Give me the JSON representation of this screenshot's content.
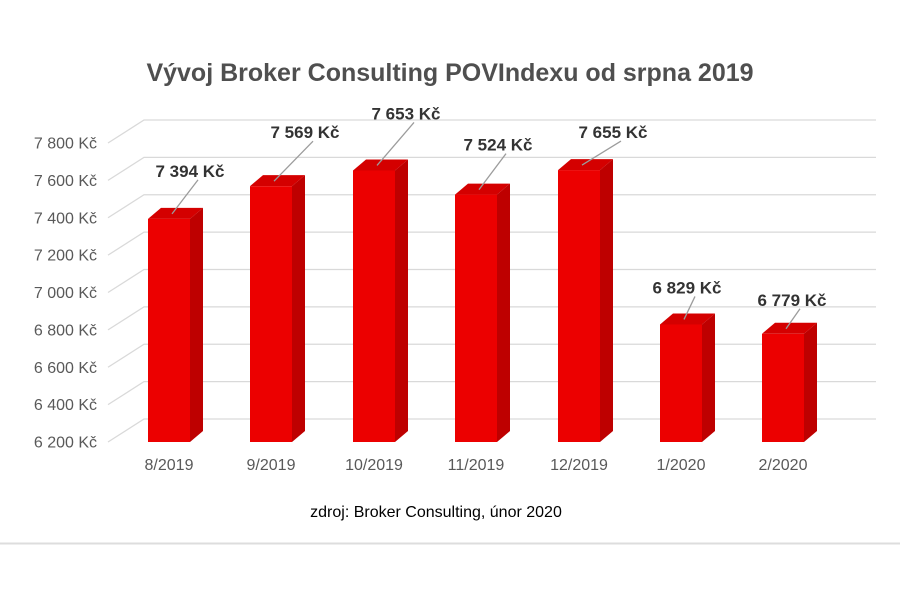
{
  "page": {
    "source_note": "zdroj: Broker Consulting, únor 2020"
  },
  "chart_data": {
    "type": "bar",
    "style": "3d-column",
    "title": "Vývoj Broker Consulting POVIndexu od srpna 2019",
    "categories": [
      "8/2019",
      "9/2019",
      "10/2019",
      "11/2019",
      "12/2019",
      "1/2020",
      "2/2020"
    ],
    "series": [
      {
        "name": "POVIndex",
        "values": [
          7394,
          7569,
          7653,
          7524,
          7655,
          6829,
          6779
        ],
        "data_labels": [
          "7 394 Kč",
          "7 569 Kč",
          "7 653 Kč",
          "7 524 Kč",
          "7 655 Kč",
          "6 829 Kč",
          "6 779 Kč"
        ]
      }
    ],
    "unit": "Kč",
    "ylim": [
      6200,
      7800
    ],
    "y_ticks": [
      {
        "value": 7800,
        "label": "7 800 Kč"
      },
      {
        "value": 7600,
        "label": "7 600 Kč"
      },
      {
        "value": 7400,
        "label": "7 400 Kč"
      },
      {
        "value": 7200,
        "label": "7 200 Kč"
      },
      {
        "value": 7000,
        "label": "7 000 Kč"
      },
      {
        "value": 6800,
        "label": "6 800 Kč"
      },
      {
        "value": 6600,
        "label": "6 600 Kč"
      },
      {
        "value": 6400,
        "label": "6 400 Kč"
      },
      {
        "value": 6200,
        "label": "6 200 Kč"
      }
    ],
    "grid": true,
    "legend": "none",
    "colors": {
      "bar_front": "#ec0000",
      "bar_top": "#d40000",
      "bar_side": "#be0000",
      "gridline": "#d9d9d9",
      "leader_line": "#9c9c9c",
      "axis_label": "#595959",
      "data_label": "#333333",
      "title": "#4f4f4f",
      "divider": "#dddddd"
    }
  }
}
